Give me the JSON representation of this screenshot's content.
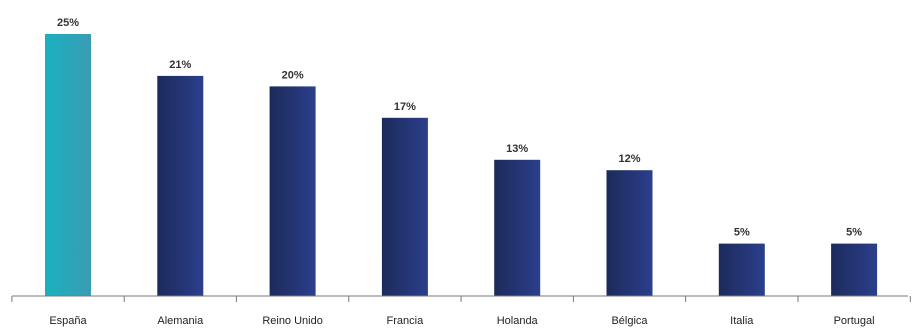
{
  "chart_data": {
    "type": "bar",
    "categories": [
      "España",
      "Alemania",
      "Reino Unido",
      "Francia",
      "Holanda",
      "Bélgica",
      "Italia",
      "Portugal"
    ],
    "values": [
      25,
      21,
      20,
      17,
      13,
      12,
      5,
      5
    ],
    "value_labels": [
      "25%",
      "21%",
      "20%",
      "17%",
      "13%",
      "12%",
      "5%",
      "5%"
    ],
    "highlight_index": 0,
    "colors": {
      "highlight_top": "#1ab1bf",
      "highlight_bottom": "#3a9cb4",
      "bar_left": "#1c2a5a",
      "bar_right": "#2b3f8c",
      "axis": "#7a7a7a"
    },
    "ylim": [
      0,
      25
    ],
    "title": "",
    "xlabel": "",
    "ylabel": ""
  }
}
